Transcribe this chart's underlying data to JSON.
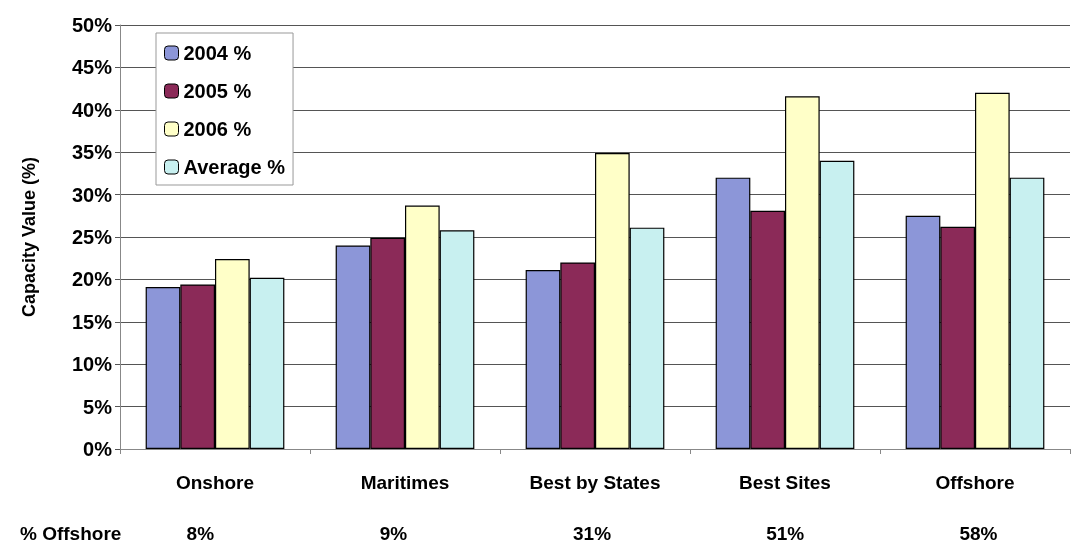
{
  "chart_data": {
    "type": "bar",
    "ylabel": "Capacity Value (%)",
    "categories": [
      "Onshore",
      "Maritimes",
      "Best by States",
      "Best Sites",
      "Offshore"
    ],
    "series": [
      {
        "name": "2004 %",
        "color": "#8c96d8",
        "values": [
          19.1,
          24.0,
          21.1,
          32.0,
          27.5
        ]
      },
      {
        "name": "2005 %",
        "color": "#8b2a58",
        "values": [
          19.4,
          24.9,
          22.0,
          28.1,
          26.2
        ]
      },
      {
        "name": "2006 %",
        "color": "#ffffc8",
        "values": [
          22.4,
          28.7,
          34.9,
          41.6,
          42.0
        ]
      },
      {
        "name": "Average %",
        "color": "#c8f0f0",
        "values": [
          20.2,
          25.8,
          26.1,
          34.0,
          32.0
        ]
      }
    ],
    "ylim": [
      0,
      50
    ],
    "yticks": [
      {
        "value": 0,
        "label": "0%"
      },
      {
        "value": 5,
        "label": "5%"
      },
      {
        "value": 10,
        "label": "10%"
      },
      {
        "value": 15,
        "label": "15%"
      },
      {
        "value": 20,
        "label": "20%"
      },
      {
        "value": 25,
        "label": "25%"
      },
      {
        "value": 30,
        "label": "30%"
      },
      {
        "value": 35,
        "label": "35%"
      },
      {
        "value": 40,
        "label": "40%"
      },
      {
        "value": 45,
        "label": "45%"
      },
      {
        "value": 50,
        "label": "50%"
      }
    ],
    "grid": "y",
    "legend": "top left",
    "annotations": [
      "% Offshore",
      "8%",
      "9%",
      "31%",
      "51%",
      "58%"
    ]
  }
}
